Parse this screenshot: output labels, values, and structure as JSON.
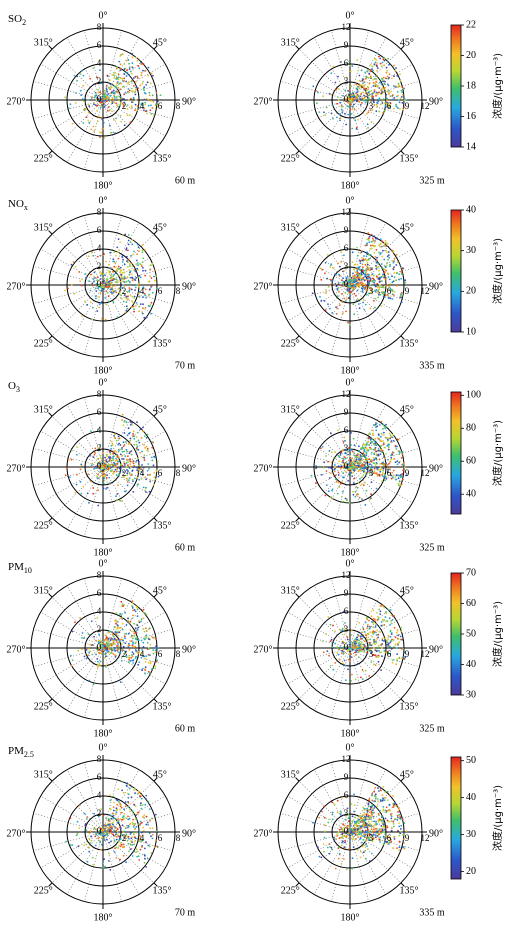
{
  "figure": {
    "colorbar_title": "浓度/(μg·m⁻³)"
  },
  "chart_data": [
    {
      "type": "scatter",
      "subtype": "polar",
      "pollutant": "SO",
      "pollutant_sub": "2",
      "height": "60 m",
      "radial_ticks": [
        0,
        2,
        4,
        6,
        8
      ],
      "rlim": [
        0,
        8
      ],
      "angle_ticks": [
        "0°",
        "45°",
        "90°",
        "135°",
        "180°",
        "225°",
        "270°",
        "315°"
      ],
      "spread_deg": [
        20,
        110
      ],
      "density": "moderate"
    },
    {
      "type": "scatter",
      "subtype": "polar",
      "pollutant": "SO",
      "pollutant_sub": "2",
      "height": "325 m",
      "radial_ticks": [
        0,
        3,
        6,
        9,
        12
      ],
      "rlim": [
        0,
        12
      ],
      "angle_ticks": [
        "0°",
        "45°",
        "90°",
        "135°",
        "180°",
        "225°",
        "270°",
        "315°"
      ],
      "colorbar": {
        "ticks": [
          14,
          16,
          18,
          20,
          22
        ],
        "range": [
          14,
          22
        ]
      },
      "spread_deg": [
        30,
        100
      ],
      "density": "moderate"
    },
    {
      "type": "scatter",
      "subtype": "polar",
      "pollutant": "NO",
      "pollutant_sub": "x",
      "height": "70 m",
      "radial_ticks": [
        0,
        2,
        4,
        6,
        8
      ],
      "rlim": [
        0,
        8
      ],
      "angle_ticks": [
        "0°",
        "45°",
        "90°",
        "135°",
        "180°",
        "225°",
        "270°",
        "315°"
      ],
      "spread_deg": [
        20,
        130
      ],
      "density": "moderate"
    },
    {
      "type": "scatter",
      "subtype": "polar",
      "pollutant": "NO",
      "pollutant_sub": "x",
      "height": "335 m",
      "radial_ticks": [
        0,
        3,
        6,
        9,
        12
      ],
      "rlim": [
        0,
        12
      ],
      "angle_ticks": [
        "0°",
        "45°",
        "90°",
        "135°",
        "180°",
        "225°",
        "270°",
        "315°"
      ],
      "colorbar": {
        "ticks": [
          10,
          20,
          30,
          40
        ],
        "range": [
          10,
          40
        ]
      },
      "spread_deg": [
        20,
        110
      ],
      "density": "high"
    },
    {
      "type": "scatter",
      "subtype": "polar",
      "pollutant": "O",
      "pollutant_sub": "3",
      "height": "60 m",
      "radial_ticks": [
        0,
        2,
        4,
        6,
        8
      ],
      "rlim": [
        0,
        8
      ],
      "angle_ticks": [
        "0°",
        "45°",
        "90°",
        "135°",
        "180°",
        "225°",
        "270°",
        "315°"
      ],
      "spread_deg": [
        20,
        120
      ],
      "density": "moderate"
    },
    {
      "type": "scatter",
      "subtype": "polar",
      "pollutant": "O",
      "pollutant_sub": "3",
      "height": "325 m",
      "radial_ticks": [
        0,
        3,
        6,
        9,
        12
      ],
      "rlim": [
        0,
        12
      ],
      "angle_ticks": [
        "0°",
        "45°",
        "90°",
        "135°",
        "180°",
        "225°",
        "270°",
        "315°"
      ],
      "colorbar": {
        "ticks": [
          40,
          60,
          80,
          100
        ],
        "range": [
          28,
          102
        ]
      },
      "spread_deg": [
        30,
        110
      ],
      "density": "high"
    },
    {
      "type": "scatter",
      "subtype": "polar",
      "pollutant": "PM",
      "pollutant_sub": "10",
      "height": "60 m",
      "radial_ticks": [
        0,
        2,
        4,
        6,
        8
      ],
      "rlim": [
        0,
        8
      ],
      "angle_ticks": [
        "0°",
        "45°",
        "90°",
        "135°",
        "180°",
        "225°",
        "270°",
        "315°"
      ],
      "spread_deg": [
        20,
        120
      ],
      "density": "moderate"
    },
    {
      "type": "scatter",
      "subtype": "polar",
      "pollutant": "PM",
      "pollutant_sub": "10",
      "height": "325 m",
      "radial_ticks": [
        0,
        3,
        6,
        9,
        12
      ],
      "rlim": [
        0,
        12
      ],
      "angle_ticks": [
        "0°",
        "45°",
        "90°",
        "135°",
        "180°",
        "225°",
        "270°",
        "315°"
      ],
      "colorbar": {
        "ticks": [
          30,
          40,
          50,
          60,
          70
        ],
        "range": [
          30,
          70
        ]
      },
      "spread_deg": [
        30,
        110
      ],
      "density": "moderate"
    },
    {
      "type": "scatter",
      "subtype": "polar",
      "pollutant": "PM",
      "pollutant_sub": "2.5",
      "height": "70 m",
      "radial_ticks": [
        0,
        2,
        4,
        6,
        8
      ],
      "rlim": [
        0,
        8
      ],
      "angle_ticks": [
        "0°",
        "45°",
        "90°",
        "135°",
        "180°",
        "225°",
        "270°",
        "315°"
      ],
      "spread_deg": [
        20,
        130
      ],
      "density": "moderate"
    },
    {
      "type": "scatter",
      "subtype": "polar",
      "pollutant": "PM",
      "pollutant_sub": "2.5",
      "height": "335 m",
      "radial_ticks": [
        0,
        3,
        6,
        9,
        12
      ],
      "rlim": [
        0,
        12
      ],
      "angle_ticks": [
        "0°",
        "45°",
        "90°",
        "135°",
        "180°",
        "225°",
        "270°",
        "315°"
      ],
      "colorbar": {
        "ticks": [
          20,
          30,
          40,
          50
        ],
        "range": [
          18,
          51
        ]
      },
      "spread_deg": [
        30,
        110
      ],
      "density": "high"
    }
  ]
}
